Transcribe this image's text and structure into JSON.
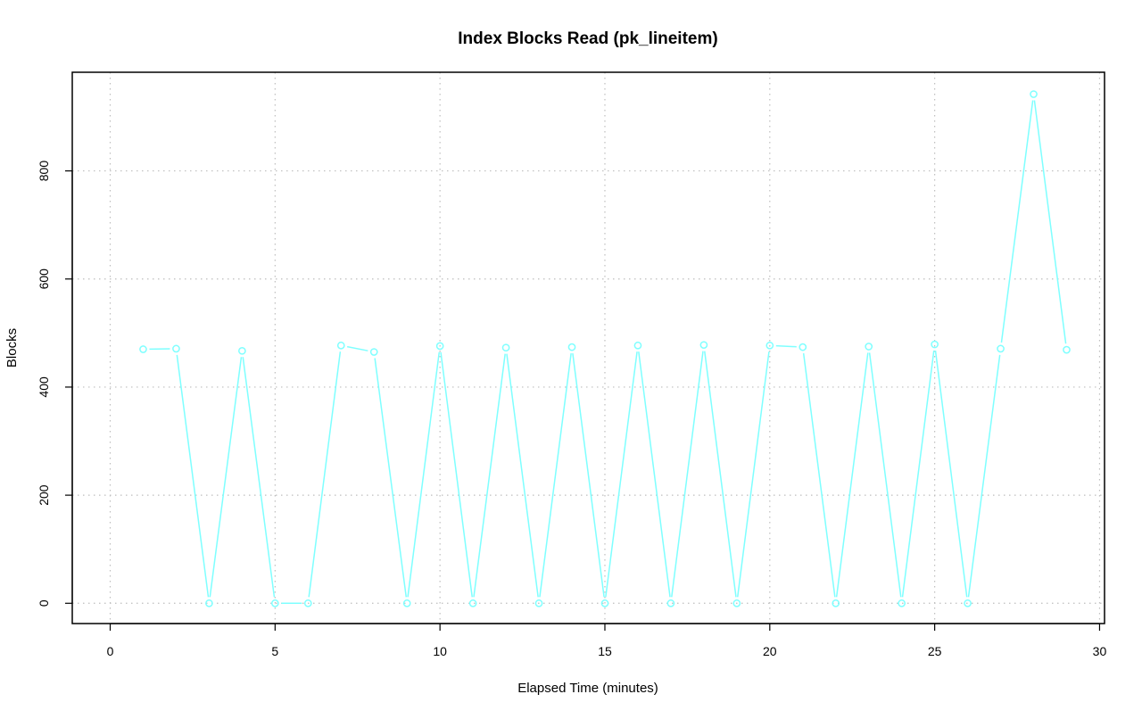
{
  "chart_data": {
    "type": "line",
    "title": "Index Blocks Read (pk_lineitem)",
    "xlabel": "Elapsed Time (minutes)",
    "ylabel": "Blocks",
    "xlim": [
      -1.15,
      30.15
    ],
    "ylim": [
      -37.5,
      982.5
    ],
    "xticks": [
      0,
      5,
      10,
      15,
      20,
      25,
      30
    ],
    "yticks": [
      0,
      200,
      400,
      600,
      800
    ],
    "grid": true,
    "series_color": "#7fffff",
    "markers": "open-circle",
    "x": [
      1,
      2,
      3,
      4,
      5,
      6,
      7,
      8,
      9,
      10,
      11,
      12,
      13,
      14,
      15,
      16,
      17,
      18,
      19,
      20,
      21,
      22,
      23,
      24,
      25,
      26,
      27,
      28,
      29
    ],
    "y": [
      470,
      471,
      0,
      467,
      0,
      0,
      477,
      465,
      0,
      476,
      0,
      473,
      0,
      474,
      0,
      477,
      0,
      478,
      0,
      477,
      474,
      0,
      475,
      0,
      479,
      0,
      471,
      942,
      469
    ]
  }
}
